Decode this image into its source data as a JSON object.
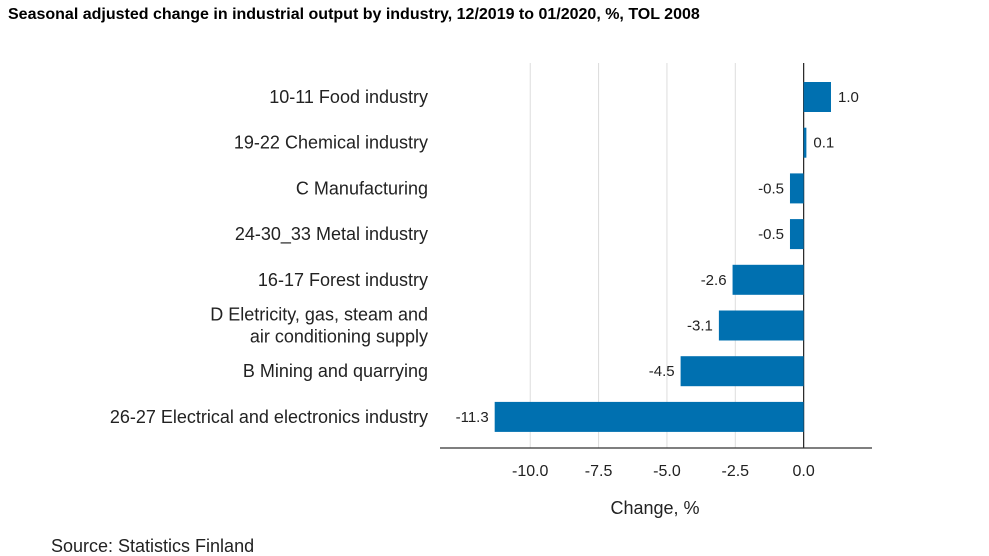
{
  "chart_data": {
    "type": "bar",
    "orientation": "horizontal",
    "title": "Seasonal adjusted change in industrial output by industry, 12/2019 to 01/2020, %, TOL 2008",
    "categories": [
      [
        "10-11 Food industry"
      ],
      [
        "19-22 Chemical industry"
      ],
      [
        "C Manufacturing"
      ],
      [
        "24-30_33 Metal industry"
      ],
      [
        "16-17 Forest industry"
      ],
      [
        "D Eletricity, gas, steam and",
        "air conditioning supply"
      ],
      [
        "B Mining and quarrying"
      ],
      [
        "26-27 Electrical and electronics industry"
      ]
    ],
    "values": [
      1.0,
      0.1,
      -0.5,
      -0.5,
      -2.6,
      -3.1,
      -4.5,
      -11.3
    ],
    "data_labels": [
      "1.0",
      "0.1",
      "-0.5",
      "-0.5",
      "-2.6",
      "-3.1",
      "-4.5",
      "-11.3"
    ],
    "xlabel": "Change, %",
    "ylabel": "",
    "xlim": [
      -13.3,
      2.5
    ],
    "xticks": [
      -10.0,
      -7.5,
      -5.0,
      -2.5,
      0.0
    ],
    "xtick_labels": [
      "-10.0",
      "-7.5",
      "-5.0",
      "-2.5",
      "0.0"
    ],
    "grid": "vertical",
    "bar_color": "#0070b0",
    "source": "Source: Statistics Finland"
  }
}
